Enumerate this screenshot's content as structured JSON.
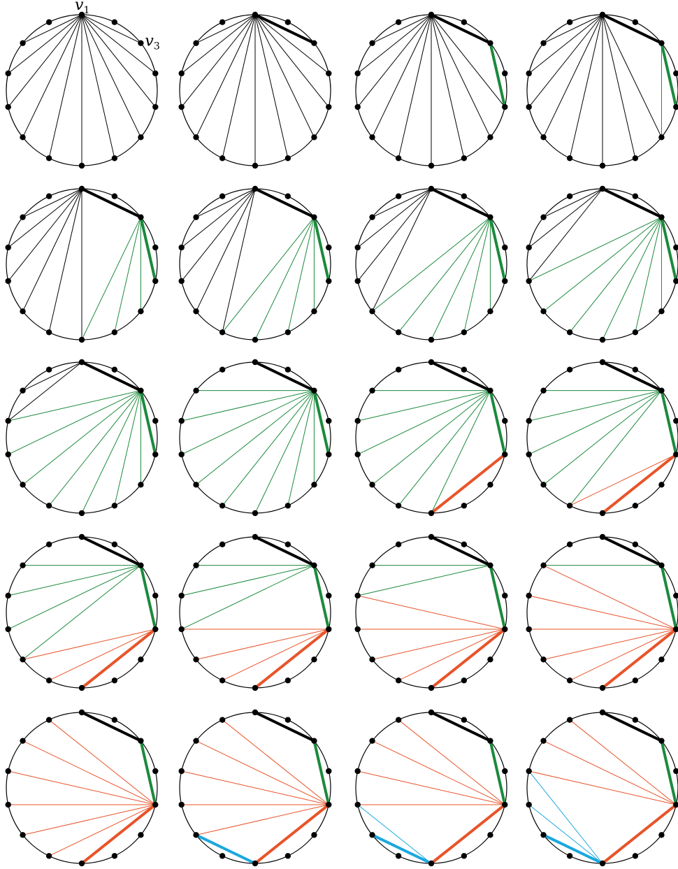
{
  "figure": {
    "num_vertices": 14,
    "colors": {
      "black": "#000000",
      "green": "#1b8a3c",
      "orange": "#e8542a",
      "blue": "#1aa7e0"
    },
    "labels": [
      {
        "vertex": 0,
        "name": "v",
        "subscript": "1"
      },
      {
        "vertex": 2,
        "name": "v",
        "subscript": "3"
      }
    ],
    "panels": [
      {
        "edges": [
          [
            0,
            2,
            "black",
            1
          ],
          [
            0,
            3,
            "black",
            1
          ],
          [
            0,
            4,
            "black",
            1
          ],
          [
            0,
            5,
            "black",
            1
          ],
          [
            0,
            6,
            "black",
            1
          ],
          [
            0,
            7,
            "black",
            1
          ],
          [
            0,
            8,
            "black",
            1
          ],
          [
            0,
            9,
            "black",
            1
          ],
          [
            0,
            10,
            "black",
            1
          ],
          [
            0,
            11,
            "black",
            1
          ],
          [
            0,
            12,
            "black",
            1
          ]
        ]
      },
      {
        "edges": [
          [
            0,
            2,
            "black",
            3
          ],
          [
            0,
            3,
            "black",
            1
          ],
          [
            0,
            4,
            "black",
            1
          ],
          [
            0,
            5,
            "black",
            1
          ],
          [
            0,
            6,
            "black",
            1
          ],
          [
            0,
            7,
            "black",
            1
          ],
          [
            0,
            8,
            "black",
            1
          ],
          [
            0,
            9,
            "black",
            1
          ],
          [
            0,
            10,
            "black",
            1
          ],
          [
            0,
            11,
            "black",
            1
          ],
          [
            0,
            12,
            "black",
            1
          ]
        ]
      },
      {
        "edges": [
          [
            0,
            2,
            "black",
            3
          ],
          [
            2,
            4,
            "green",
            3
          ],
          [
            0,
            4,
            "black",
            1
          ],
          [
            0,
            5,
            "black",
            1
          ],
          [
            0,
            6,
            "black",
            1
          ],
          [
            0,
            7,
            "black",
            1
          ],
          [
            0,
            8,
            "black",
            1
          ],
          [
            0,
            9,
            "black",
            1
          ],
          [
            0,
            10,
            "black",
            1
          ],
          [
            0,
            11,
            "black",
            1
          ],
          [
            0,
            12,
            "black",
            1
          ]
        ]
      },
      {
        "edges": [
          [
            0,
            2,
            "black",
            3
          ],
          [
            2,
            4,
            "green",
            3
          ],
          [
            2,
            5,
            "green",
            1
          ],
          [
            0,
            5,
            "black",
            1
          ],
          [
            0,
            6,
            "black",
            1
          ],
          [
            0,
            7,
            "black",
            1
          ],
          [
            0,
            8,
            "black",
            1
          ],
          [
            0,
            9,
            "black",
            1
          ],
          [
            0,
            10,
            "black",
            1
          ],
          [
            0,
            11,
            "black",
            1
          ],
          [
            0,
            12,
            "black",
            1
          ]
        ]
      },
      {
        "edges": [
          [
            0,
            2,
            "black",
            3
          ],
          [
            2,
            4,
            "green",
            3
          ],
          [
            2,
            5,
            "green",
            1
          ],
          [
            2,
            6,
            "green",
            1
          ],
          [
            2,
            7,
            "green",
            1
          ],
          [
            0,
            7,
            "black",
            1
          ],
          [
            0,
            8,
            "black",
            1
          ],
          [
            0,
            9,
            "black",
            1
          ],
          [
            0,
            10,
            "black",
            1
          ],
          [
            0,
            11,
            "black",
            1
          ],
          [
            0,
            12,
            "black",
            1
          ]
        ]
      },
      {
        "edges": [
          [
            0,
            2,
            "black",
            3
          ],
          [
            2,
            4,
            "green",
            3
          ],
          [
            2,
            5,
            "green",
            1
          ],
          [
            2,
            6,
            "green",
            1
          ],
          [
            2,
            7,
            "green",
            1
          ],
          [
            2,
            8,
            "green",
            1
          ],
          [
            0,
            8,
            "black",
            1
          ],
          [
            0,
            9,
            "black",
            1
          ],
          [
            0,
            10,
            "black",
            1
          ],
          [
            0,
            11,
            "black",
            1
          ],
          [
            0,
            12,
            "black",
            1
          ]
        ]
      },
      {
        "edges": [
          [
            0,
            2,
            "black",
            3
          ],
          [
            2,
            4,
            "green",
            3
          ],
          [
            2,
            5,
            "green",
            1
          ],
          [
            2,
            6,
            "green",
            1
          ],
          [
            2,
            7,
            "green",
            1
          ],
          [
            2,
            8,
            "green",
            1
          ],
          [
            2,
            9,
            "green",
            1
          ],
          [
            0,
            9,
            "black",
            1
          ],
          [
            0,
            10,
            "black",
            1
          ],
          [
            0,
            11,
            "black",
            1
          ],
          [
            0,
            12,
            "black",
            1
          ]
        ]
      },
      {
        "edges": [
          [
            0,
            2,
            "black",
            3
          ],
          [
            2,
            4,
            "green",
            3
          ],
          [
            2,
            5,
            "green",
            1
          ],
          [
            2,
            6,
            "green",
            1
          ],
          [
            2,
            7,
            "green",
            1
          ],
          [
            2,
            8,
            "green",
            1
          ],
          [
            2,
            9,
            "green",
            1
          ],
          [
            2,
            10,
            "green",
            1
          ],
          [
            0,
            10,
            "black",
            1
          ],
          [
            0,
            11,
            "black",
            1
          ],
          [
            0,
            12,
            "black",
            1
          ]
        ]
      },
      {
        "edges": [
          [
            0,
            2,
            "black",
            3
          ],
          [
            2,
            4,
            "green",
            3
          ],
          [
            2,
            5,
            "green",
            1
          ],
          [
            2,
            6,
            "green",
            1
          ],
          [
            2,
            7,
            "green",
            1
          ],
          [
            2,
            8,
            "green",
            1
          ],
          [
            2,
            9,
            "green",
            1
          ],
          [
            2,
            10,
            "green",
            1
          ],
          [
            2,
            11,
            "green",
            1
          ],
          [
            0,
            11,
            "black",
            1
          ],
          [
            0,
            12,
            "black",
            1
          ]
        ]
      },
      {
        "edges": [
          [
            0,
            2,
            "black",
            3
          ],
          [
            2,
            4,
            "green",
            3
          ],
          [
            2,
            5,
            "green",
            1
          ],
          [
            2,
            6,
            "green",
            1
          ],
          [
            2,
            7,
            "green",
            1
          ],
          [
            2,
            8,
            "green",
            1
          ],
          [
            2,
            9,
            "green",
            1
          ],
          [
            2,
            10,
            "green",
            1
          ],
          [
            2,
            11,
            "green",
            1
          ],
          [
            2,
            12,
            "green",
            1
          ]
        ]
      },
      {
        "edges": [
          [
            0,
            2,
            "black",
            3
          ],
          [
            2,
            4,
            "green",
            3
          ],
          [
            4,
            7,
            "orange",
            3
          ],
          [
            2,
            7,
            "green",
            1
          ],
          [
            2,
            8,
            "green",
            1
          ],
          [
            2,
            9,
            "green",
            1
          ],
          [
            2,
            10,
            "green",
            1
          ],
          [
            2,
            11,
            "green",
            1
          ],
          [
            2,
            12,
            "green",
            1
          ]
        ]
      },
      {
        "edges": [
          [
            0,
            2,
            "black",
            3
          ],
          [
            2,
            4,
            "green",
            3
          ],
          [
            4,
            7,
            "orange",
            3
          ],
          [
            4,
            8,
            "orange",
            1
          ],
          [
            2,
            8,
            "green",
            1
          ],
          [
            2,
            9,
            "green",
            1
          ],
          [
            2,
            10,
            "green",
            1
          ],
          [
            2,
            11,
            "green",
            1
          ],
          [
            2,
            12,
            "green",
            1
          ]
        ]
      },
      {
        "edges": [
          [
            0,
            2,
            "black",
            3
          ],
          [
            2,
            4,
            "green",
            3
          ],
          [
            4,
            7,
            "orange",
            3
          ],
          [
            4,
            8,
            "orange",
            1
          ],
          [
            4,
            9,
            "orange",
            1
          ],
          [
            2,
            9,
            "green",
            1
          ],
          [
            2,
            10,
            "green",
            1
          ],
          [
            2,
            11,
            "green",
            1
          ],
          [
            2,
            12,
            "green",
            1
          ]
        ]
      },
      {
        "edges": [
          [
            0,
            2,
            "black",
            3
          ],
          [
            2,
            4,
            "green",
            3
          ],
          [
            4,
            7,
            "orange",
            3
          ],
          [
            4,
            8,
            "orange",
            1
          ],
          [
            4,
            9,
            "orange",
            1
          ],
          [
            4,
            10,
            "orange",
            1
          ],
          [
            2,
            10,
            "green",
            1
          ],
          [
            2,
            11,
            "green",
            1
          ],
          [
            2,
            12,
            "green",
            1
          ]
        ]
      },
      {
        "edges": [
          [
            0,
            2,
            "black",
            3
          ],
          [
            2,
            4,
            "green",
            3
          ],
          [
            4,
            7,
            "orange",
            3
          ],
          [
            4,
            8,
            "orange",
            1
          ],
          [
            4,
            9,
            "orange",
            1
          ],
          [
            4,
            10,
            "orange",
            1
          ],
          [
            4,
            11,
            "orange",
            1
          ],
          [
            2,
            11,
            "green",
            1
          ],
          [
            2,
            12,
            "green",
            1
          ]
        ]
      },
      {
        "edges": [
          [
            0,
            2,
            "black",
            3
          ],
          [
            2,
            4,
            "green",
            3
          ],
          [
            4,
            7,
            "orange",
            3
          ],
          [
            4,
            8,
            "orange",
            1
          ],
          [
            4,
            9,
            "orange",
            1
          ],
          [
            4,
            10,
            "orange",
            1
          ],
          [
            4,
            11,
            "orange",
            1
          ],
          [
            4,
            12,
            "orange",
            1
          ],
          [
            2,
            12,
            "green",
            1
          ]
        ]
      },
      {
        "edges": [
          [
            0,
            2,
            "black",
            3
          ],
          [
            2,
            4,
            "green",
            3
          ],
          [
            4,
            7,
            "orange",
            3
          ],
          [
            4,
            8,
            "orange",
            1
          ],
          [
            4,
            9,
            "orange",
            1
          ],
          [
            4,
            10,
            "orange",
            1
          ],
          [
            4,
            11,
            "orange",
            1
          ],
          [
            4,
            12,
            "orange",
            1
          ],
          [
            4,
            13,
            "orange",
            1
          ]
        ]
      },
      {
        "edges": [
          [
            0,
            2,
            "black",
            3
          ],
          [
            2,
            4,
            "green",
            3
          ],
          [
            4,
            7,
            "orange",
            3
          ],
          [
            7,
            9,
            "blue",
            3
          ],
          [
            4,
            9,
            "orange",
            1
          ],
          [
            4,
            10,
            "orange",
            1
          ],
          [
            4,
            11,
            "orange",
            1
          ],
          [
            4,
            12,
            "orange",
            1
          ],
          [
            4,
            13,
            "orange",
            1
          ]
        ]
      },
      {
        "edges": [
          [
            0,
            2,
            "black",
            3
          ],
          [
            2,
            4,
            "green",
            3
          ],
          [
            4,
            7,
            "orange",
            3
          ],
          [
            7,
            9,
            "blue",
            3
          ],
          [
            7,
            10,
            "blue",
            1
          ],
          [
            4,
            10,
            "orange",
            1
          ],
          [
            4,
            11,
            "orange",
            1
          ],
          [
            4,
            12,
            "orange",
            1
          ],
          [
            4,
            13,
            "orange",
            1
          ]
        ]
      },
      {
        "edges": [
          [
            0,
            2,
            "black",
            3
          ],
          [
            2,
            4,
            "green",
            3
          ],
          [
            4,
            7,
            "orange",
            3
          ],
          [
            7,
            9,
            "blue",
            3
          ],
          [
            7,
            10,
            "blue",
            1
          ],
          [
            7,
            11,
            "blue",
            1
          ],
          [
            4,
            11,
            "orange",
            1
          ],
          [
            4,
            12,
            "orange",
            1
          ],
          [
            4,
            13,
            "orange",
            1
          ]
        ]
      }
    ]
  }
}
